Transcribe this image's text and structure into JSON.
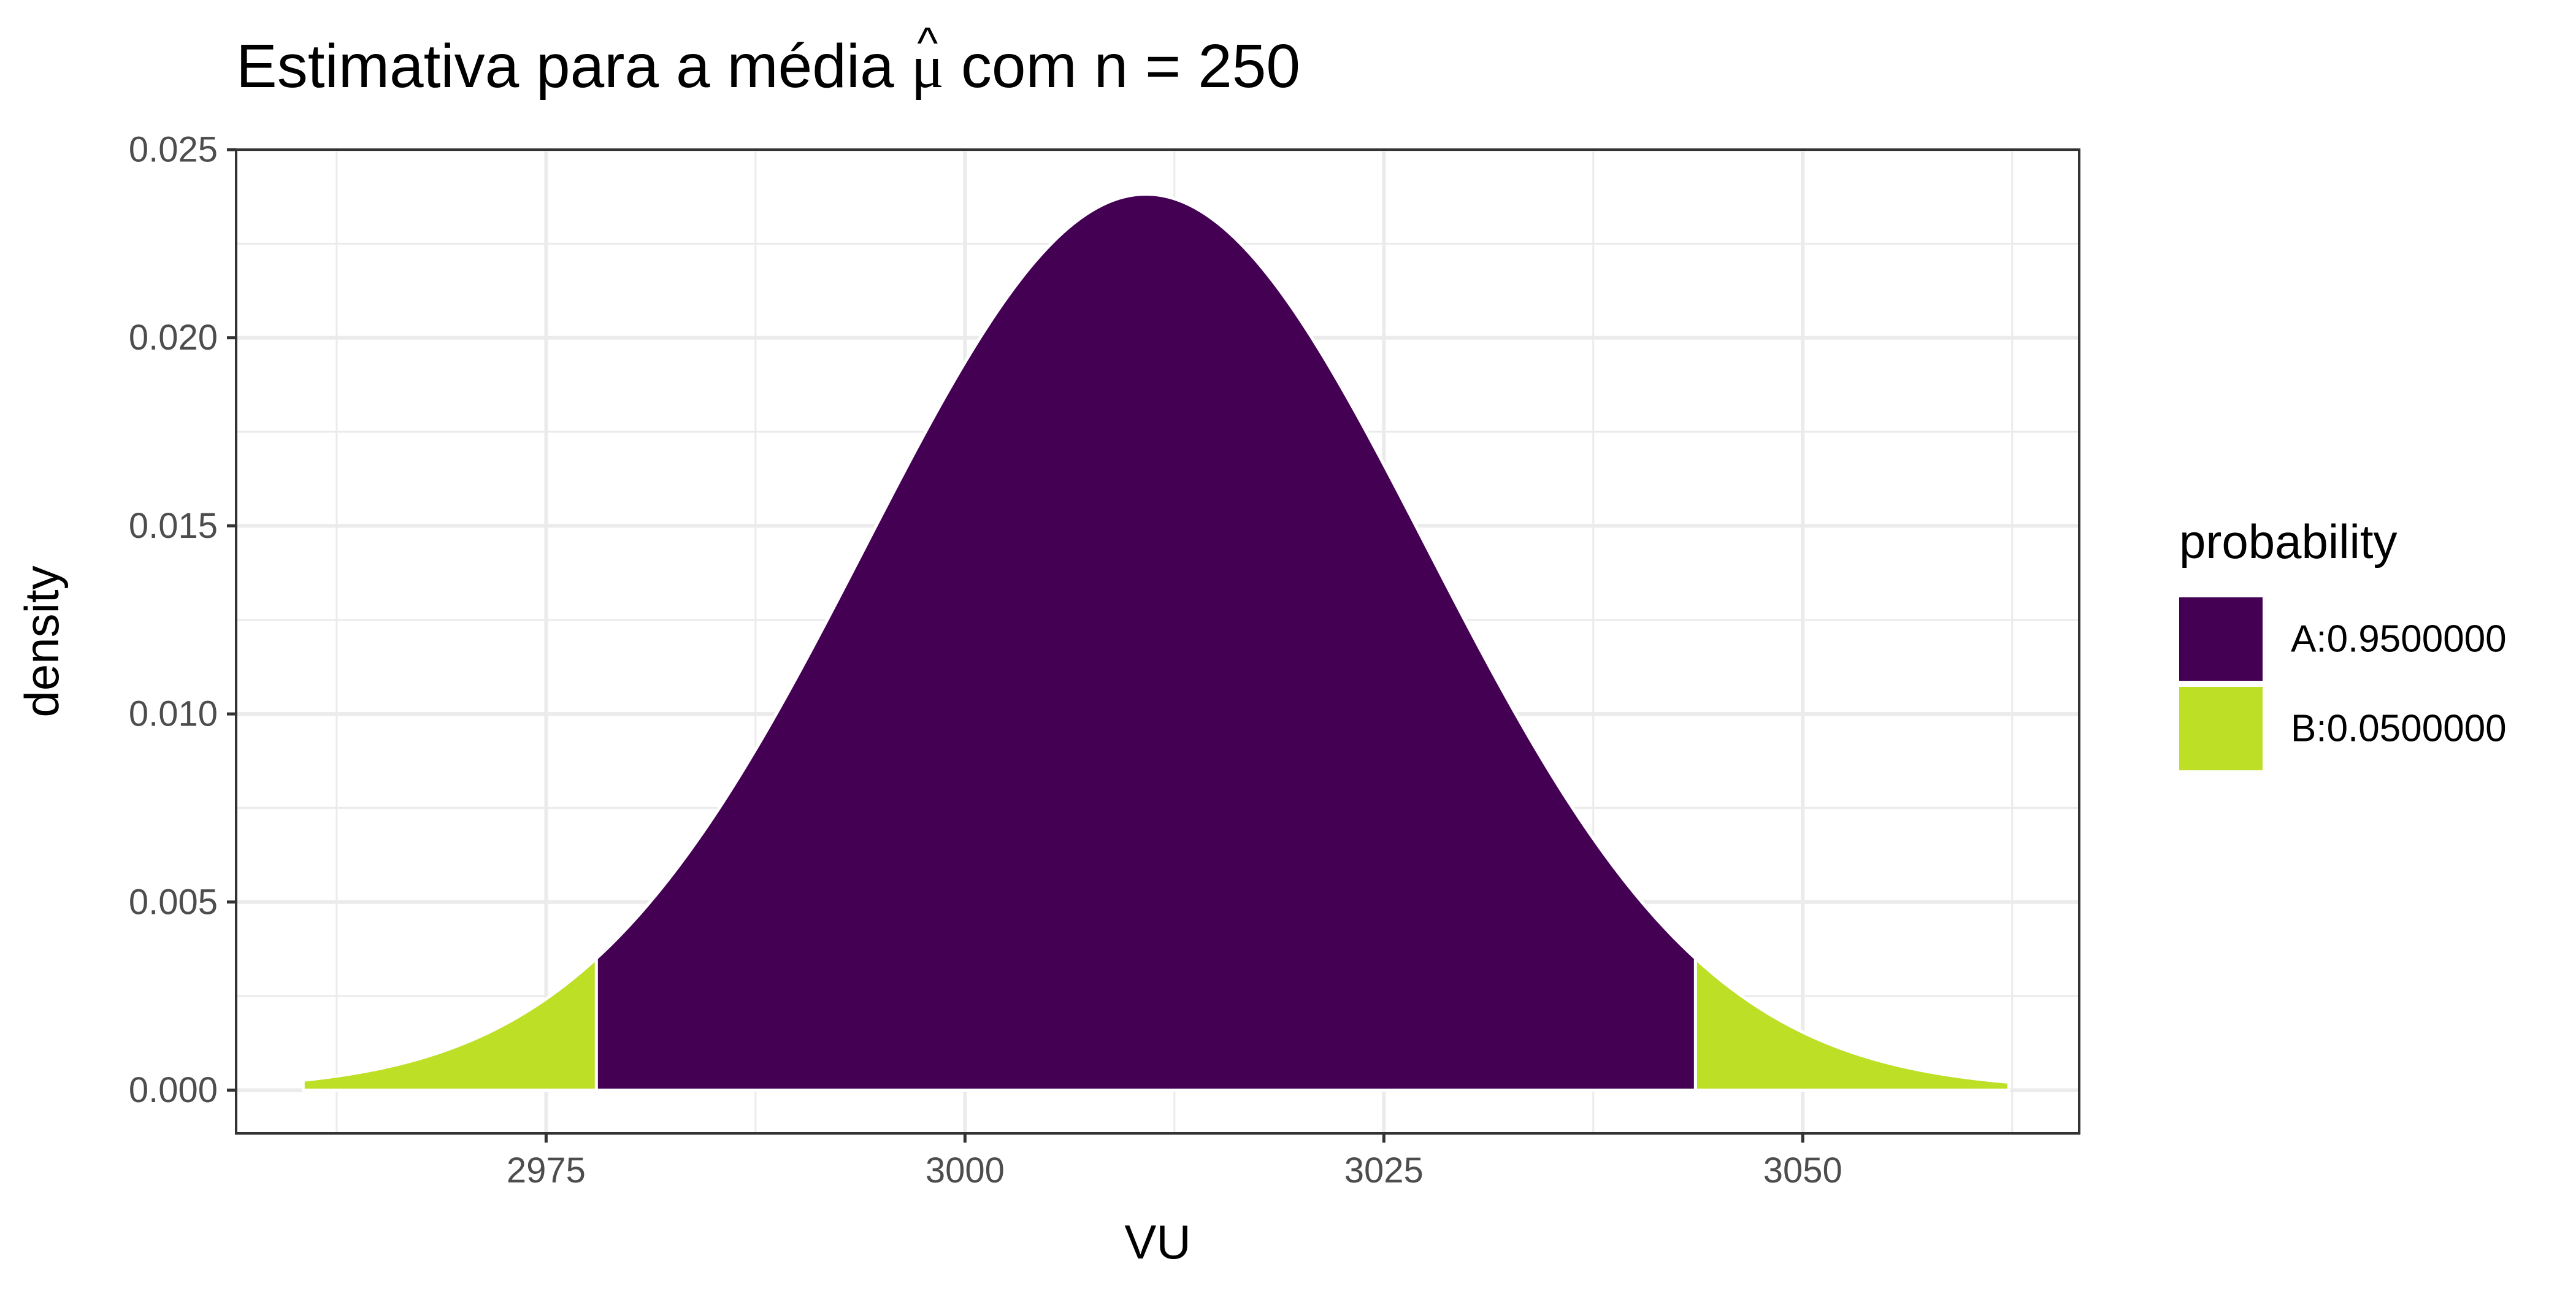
{
  "chart_data": {
    "type": "area",
    "title_prefix": "Estimativa para a média ",
    "title_symbol": "μ",
    "title_hat": "^",
    "title_suffix": " com n = 250",
    "xlabel": "VU",
    "ylabel": "density",
    "xlim": [
      2956.5,
      3066.5
    ],
    "ylim": [
      -0.00115,
      0.025
    ],
    "xticks": [
      2975,
      3000,
      3025,
      3050
    ],
    "xtick_labels": [
      "2975",
      "3000",
      "3025",
      "3050"
    ],
    "yticks": [
      0.0,
      0.005,
      0.01,
      0.015,
      0.02,
      0.025
    ],
    "ytick_labels": [
      "0.000",
      "0.005",
      "0.010",
      "0.015",
      "0.020",
      "0.025"
    ],
    "grid": true,
    "distribution": {
      "family": "normal",
      "mean": 3010.8,
      "sd": 16.75,
      "x_min": 2960.5,
      "x_max": 3062.3
    },
    "regions": [
      {
        "name": "B:0.0500000",
        "from": 2960.5,
        "to": 2978.0,
        "color": "#bddf26"
      },
      {
        "name": "A:0.9500000",
        "from": 2978.0,
        "to": 3043.6,
        "color": "#440154"
      },
      {
        "name": "B:0.0500000",
        "from": 3043.6,
        "to": 3062.3,
        "color": "#bddf26"
      }
    ],
    "legend": {
      "title": "probability",
      "position": "right",
      "entries": [
        {
          "label": "A:0.9500000",
          "color": "#440154"
        },
        {
          "label": "B:0.0500000",
          "color": "#bddf26"
        }
      ]
    }
  }
}
